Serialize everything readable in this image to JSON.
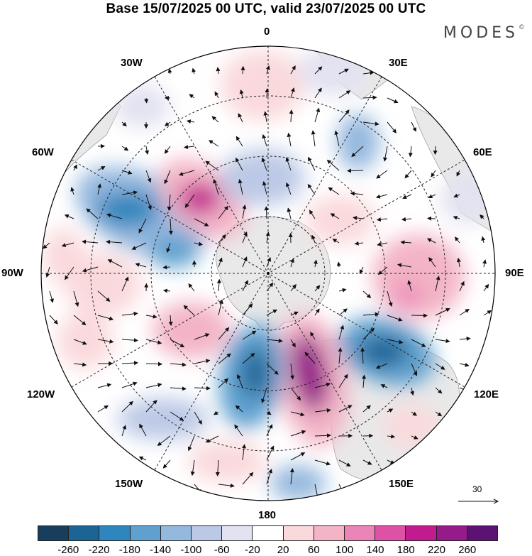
{
  "header": {
    "title": "Base 15/07/2025 00 UTC, valid 23/07/2025 00 UTC",
    "brand": "MODES",
    "brand_mark": "©"
  },
  "map": {
    "projection": "south-polar-stereographic",
    "longitude_labels": [
      "0",
      "30E",
      "60E",
      "90E",
      "120E",
      "150E",
      "180",
      "150W",
      "120W",
      "90W",
      "60W",
      "30W"
    ],
    "graticule": "dashed",
    "land_color": "#e9e9e9",
    "anomaly_features": [
      {
        "sign": "negative",
        "level": -180,
        "region": "60W-80W"
      },
      {
        "sign": "positive",
        "level": 220,
        "region": "40W-50W"
      },
      {
        "sign": "negative",
        "level": -140,
        "region": "75W-80W"
      },
      {
        "sign": "positive",
        "level": 100,
        "region": "90W"
      },
      {
        "sign": "positive",
        "level": 60,
        "region": "110W"
      },
      {
        "sign": "negative",
        "level": -220,
        "region": "155W-160W"
      },
      {
        "sign": "positive",
        "level": 260,
        "region": "165E-175E"
      },
      {
        "sign": "negative",
        "level": -220,
        "region": "120E"
      },
      {
        "sign": "positive",
        "level": 100,
        "region": "90E-100E"
      },
      {
        "sign": "negative",
        "level": -100,
        "region": "25E"
      },
      {
        "sign": "negative",
        "level": -100,
        "region": "130W"
      },
      {
        "sign": "negative",
        "level": -100,
        "region": "160E"
      },
      {
        "sign": "positive",
        "level": 100,
        "region": "170W"
      },
      {
        "sign": "negative",
        "level": -60,
        "region": "0"
      },
      {
        "sign": "positive",
        "level": 20,
        "region": "30E-60E"
      }
    ],
    "wind_vectors": "circulation arrows"
  },
  "reference_vector": {
    "label": "30"
  },
  "colorbar": {
    "colors": [
      "#173e5d",
      "#1c6494",
      "#2f85bd",
      "#5fa0cf",
      "#94b8de",
      "#bcc9e6",
      "#e2e2f1",
      "#ffffff",
      "#fad9dc",
      "#f3b4c6",
      "#ec85b7",
      "#de52a6",
      "#c21b8f",
      "#951a8a",
      "#5c1273"
    ],
    "tick_labels": [
      "-260",
      "-220",
      "-180",
      "-140",
      "-100",
      "-60",
      "-20",
      "20",
      "60",
      "100",
      "140",
      "180",
      "220",
      "260"
    ]
  }
}
